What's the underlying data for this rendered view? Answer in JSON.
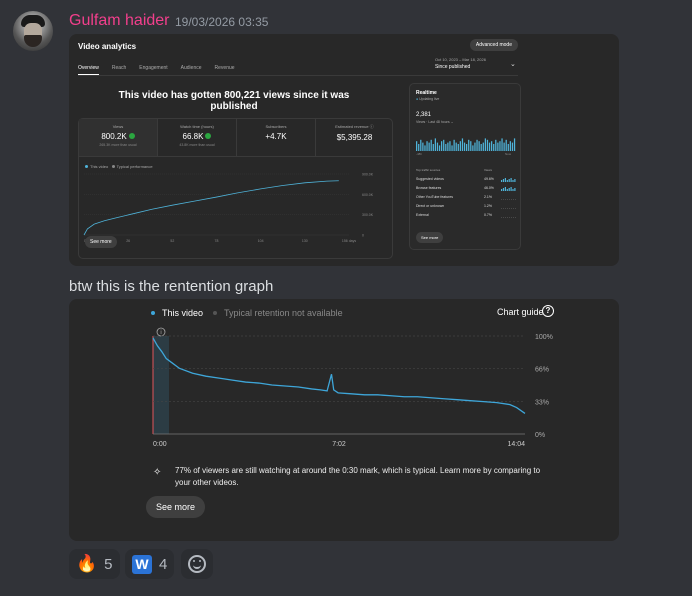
{
  "message": {
    "author": "Gulfam haider",
    "timestamp": "19/03/2026 03:35",
    "colors": {
      "username": "#f23f8c",
      "background": "#313338"
    }
  },
  "analytics": {
    "title": "Video analytics",
    "advanced_button": "Advanced mode",
    "tabs": [
      "Overview",
      "Reach",
      "Engagement",
      "Audience",
      "Revenue"
    ],
    "active_tab": "Overview",
    "date_range": "Oct 10, 2023 – Mar 18, 2026",
    "date_preset": "Since published",
    "headline": "This video has gotten 800,221 views since it was published",
    "metrics": [
      {
        "label": "Views",
        "value": "800.2K",
        "sub": "265.3K more than usual"
      },
      {
        "label": "Watch time (hours)",
        "value": "66.8K",
        "sub": "43.8K more than usual"
      },
      {
        "label": "Subscribers",
        "value": "+4.7K",
        "sub": ""
      },
      {
        "label": "Estimated revenue",
        "value": "$5,395.28",
        "sub": ""
      }
    ],
    "legend": [
      "This video",
      "Typical performance"
    ],
    "see_more": "See more",
    "chart_data": {
      "type": "line",
      "x_ticks": [
        "0",
        "26",
        "52",
        "78",
        "104",
        "130",
        "156 days"
      ],
      "y_ticks": [
        "900.0K",
        "600.0K",
        "300.0K",
        "0"
      ],
      "ylim": [
        0,
        900000
      ],
      "series": [
        {
          "name": "This video",
          "x": [
            0,
            2,
            6,
            12,
            20,
            30,
            40,
            52,
            65,
            78,
            90,
            104,
            117,
            130,
            143,
            150
          ],
          "y": [
            0,
            90000,
            160000,
            210000,
            260000,
            320000,
            380000,
            440000,
            500000,
            560000,
            620000,
            680000,
            730000,
            770000,
            795000,
            800221
          ]
        }
      ]
    }
  },
  "realtime": {
    "title": "Realtime",
    "status": "Updating live",
    "views": "2,381",
    "views_label": "Views · Last 48 hours",
    "axis_left": "-48h",
    "axis_right": "Now",
    "sources_header": "Top traffic sources",
    "views_header": "Views",
    "sources": [
      {
        "name": "Suggested videos",
        "pct": "49.6%"
      },
      {
        "name": "Browse features",
        "pct": "46.0%"
      },
      {
        "name": "Other YouTube features",
        "pct": "2.1%"
      },
      {
        "name": "Direct or unknown",
        "pct": "1.2%"
      },
      {
        "name": "External",
        "pct": "0.7%"
      }
    ],
    "see_more": "See more",
    "chart_data": {
      "type": "bar",
      "values": [
        7,
        5,
        8,
        6,
        4,
        7,
        6,
        8,
        5,
        9,
        6,
        4,
        7,
        8,
        5,
        6,
        7,
        4,
        8,
        6,
        5,
        7,
        9,
        6,
        5,
        8,
        7,
        4,
        6,
        8,
        7,
        5,
        6,
        9,
        8,
        6,
        7,
        5,
        8,
        6,
        7,
        9,
        6,
        8,
        5,
        7,
        6,
        9
      ]
    }
  },
  "second_message": "btw this is the rentention graph",
  "retention": {
    "legend_this": "This video",
    "legend_typical": "Typical retention not available",
    "chart_guide": "Chart guide",
    "y_ticks": [
      "100%",
      "66%",
      "33%",
      "0%"
    ],
    "x_ticks": [
      "0:00",
      "7:02",
      "14:04"
    ],
    "insight": "77% of viewers are still watching at around the 0:30 mark, which is typical. Learn more by comparing to your other videos.",
    "see_more": "See more",
    "chart_data": {
      "type": "line",
      "xlabel": "",
      "ylabel": "",
      "ylim": [
        0,
        100
      ],
      "x_seconds": [
        0,
        10,
        20,
        30,
        45,
        60,
        90,
        120,
        150,
        180,
        210,
        240,
        270,
        300,
        330,
        360,
        380,
        395,
        405,
        410,
        420,
        450,
        480,
        510,
        540,
        570,
        600,
        630,
        660,
        690,
        720,
        750,
        780,
        810,
        825,
        844
      ],
      "y_percent": [
        98,
        90,
        84,
        77,
        72,
        67,
        62,
        59,
        57,
        55,
        53,
        52,
        50,
        49,
        48,
        46,
        45,
        44,
        61,
        45,
        42,
        41,
        40,
        40,
        39,
        38,
        38,
        37,
        36,
        35,
        34,
        33,
        32,
        30,
        27,
        21
      ]
    }
  },
  "reactions": [
    {
      "icon": "fire-icon",
      "glyph": "🔥",
      "count": "5"
    },
    {
      "icon": "w-letter-icon",
      "glyph": "W",
      "count": "4"
    }
  ]
}
